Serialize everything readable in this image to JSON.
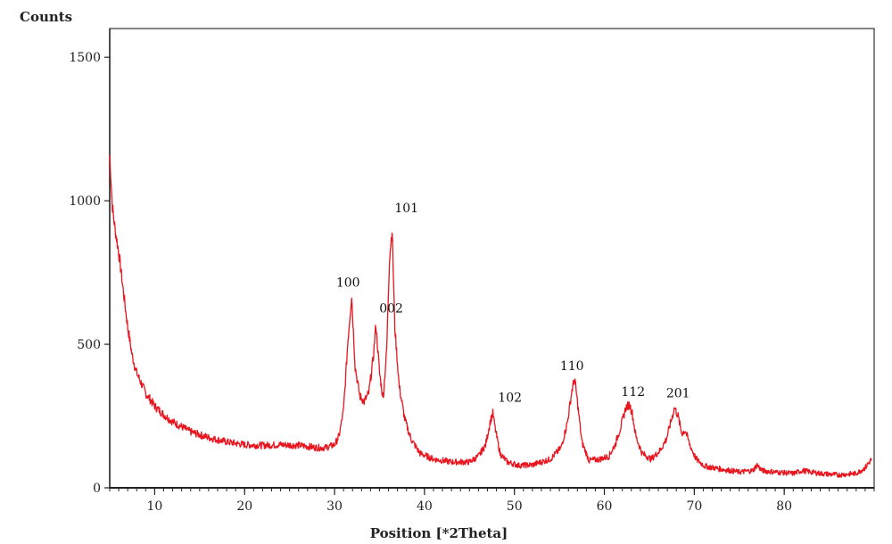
{
  "chart_data": {
    "type": "line",
    "title": "",
    "ylabel": "Counts",
    "xlabel": "Position [*2Theta]",
    "xlim": [
      5,
      90
    ],
    "ylim": [
      0,
      1600
    ],
    "x_ticks": [
      10,
      20,
      30,
      40,
      50,
      60,
      70,
      80
    ],
    "y_ticks": [
      0,
      500,
      1000,
      1500
    ],
    "grid": false,
    "legend": "none",
    "series": [
      {
        "color": "#e8141e",
        "x": [
          5.0,
          5.3,
          5.6,
          6.0,
          6.5,
          7.0,
          7.5,
          8.0,
          9.0,
          10.0,
          11.0,
          12.0,
          14.0,
          16.0,
          18.0,
          20.0,
          22.0,
          24.0,
          26.0,
          28.0,
          29.0,
          30.0,
          30.5,
          31.0,
          31.5,
          31.9,
          32.3,
          32.8,
          33.3,
          33.8,
          34.3,
          34.6,
          35.0,
          35.4,
          35.8,
          36.1,
          36.4,
          36.7,
          37.2,
          37.8,
          38.5,
          39.5,
          41.0,
          43.0,
          45.0,
          46.0,
          46.8,
          47.3,
          47.6,
          47.9,
          48.4,
          49.2,
          50.5,
          52.0,
          54.0,
          55.2,
          55.9,
          56.4,
          56.7,
          57.0,
          57.5,
          58.3,
          59.5,
          60.5,
          61.2,
          61.8,
          62.4,
          62.8,
          63.1,
          63.5,
          64.2,
          65.2,
          66.2,
          66.9,
          67.4,
          67.8,
          68.2,
          68.6,
          69.0,
          69.5,
          70.2,
          71.2,
          73.0,
          75.0,
          76.5,
          77.0,
          77.5,
          79.0,
          81.0,
          82.0,
          84.0,
          86.0,
          88.0,
          89.0,
          89.7
        ],
        "y": [
          1160,
          980,
          900,
          820,
          690,
          560,
          460,
          400,
          330,
          285,
          255,
          230,
          195,
          175,
          160,
          150,
          148,
          150,
          148,
          140,
          140,
          150,
          180,
          270,
          520,
          670,
          420,
          320,
          300,
          330,
          450,
          570,
          400,
          310,
          480,
          800,
          900,
          560,
          350,
          240,
          170,
          120,
          100,
          90,
          90,
          110,
          150,
          230,
          260,
          200,
          120,
          90,
          78,
          80,
          100,
          140,
          230,
          340,
          380,
          300,
          160,
          95,
          100,
          110,
          150,
          210,
          280,
          290,
          260,
          180,
          120,
          100,
          130,
          170,
          230,
          280,
          250,
          190,
          200,
          150,
          100,
          75,
          65,
          55,
          60,
          80,
          60,
          55,
          50,
          60,
          50,
          45,
          50,
          70,
          100
        ]
      }
    ],
    "annotations": [
      {
        "text": "100",
        "x": 31.5,
        "y": 700
      },
      {
        "text": "002",
        "x": 36.3,
        "y": 610
      },
      {
        "text": "101",
        "x": 38.0,
        "y": 960
      },
      {
        "text": "102",
        "x": 49.5,
        "y": 300
      },
      {
        "text": "110",
        "x": 56.4,
        "y": 410
      },
      {
        "text": "112",
        "x": 63.2,
        "y": 320
      },
      {
        "text": "201",
        "x": 68.2,
        "y": 315
      }
    ]
  }
}
